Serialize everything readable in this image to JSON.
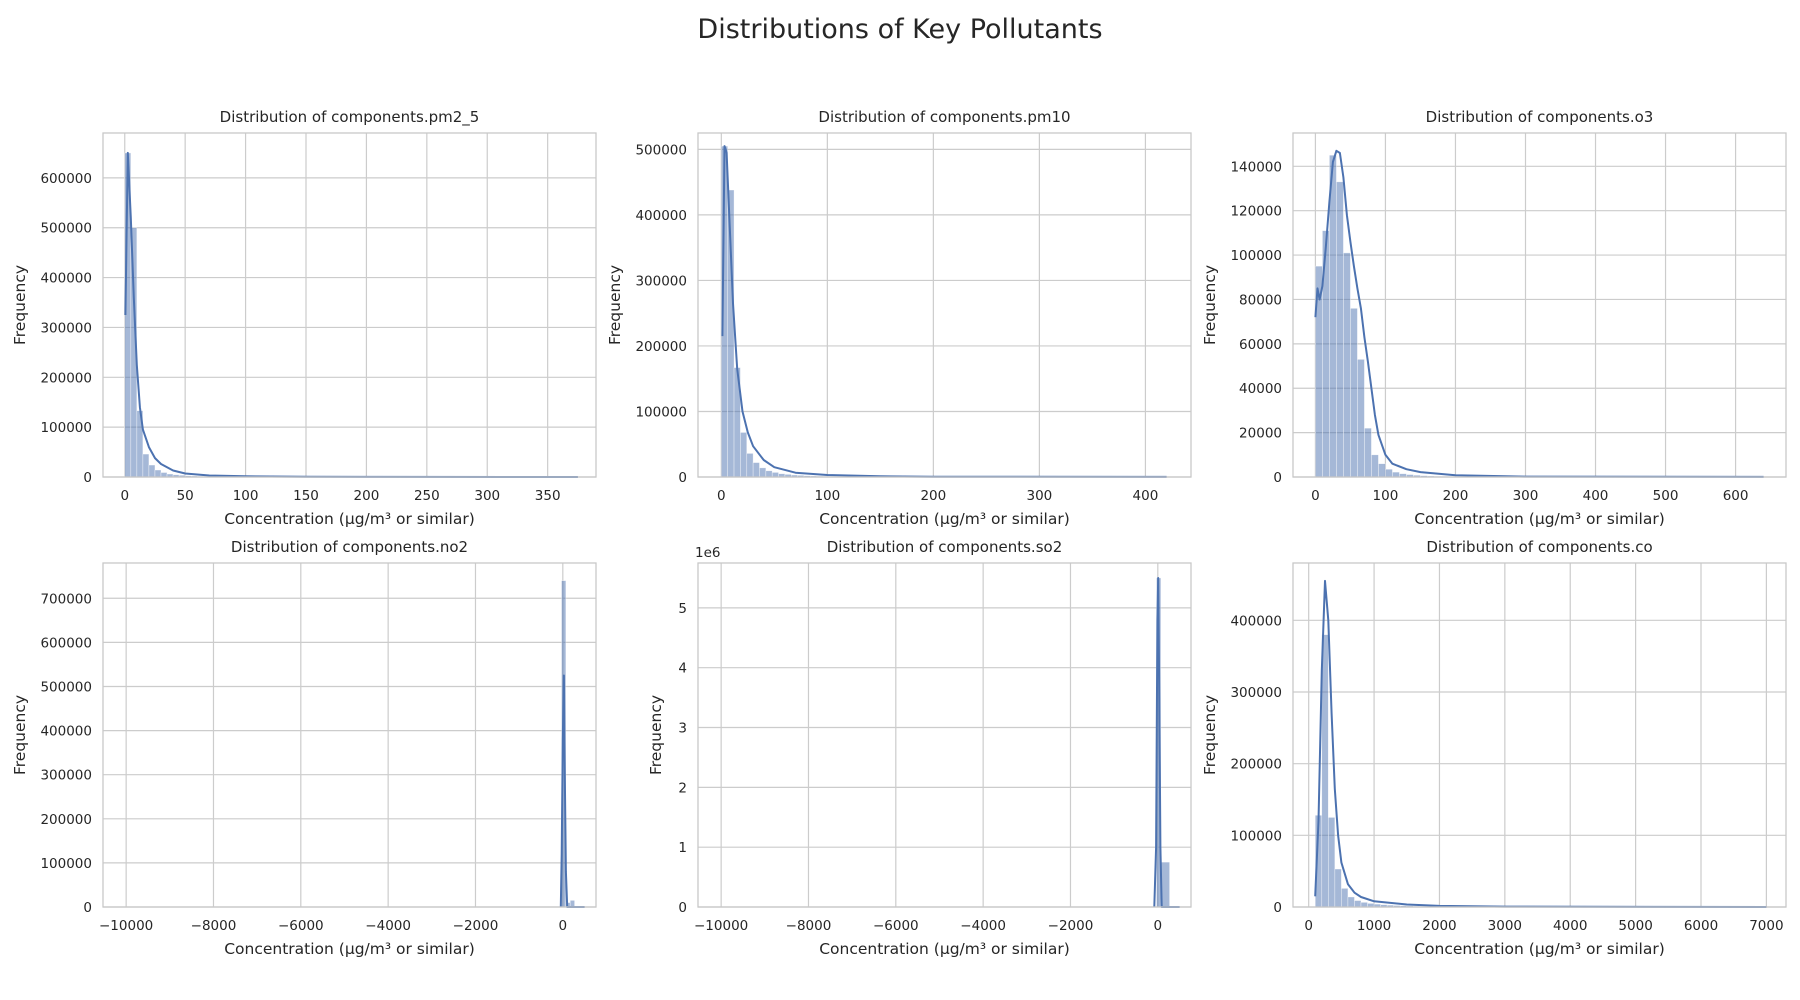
{
  "figure": {
    "title": "Distributions of Key Pollutants",
    "xlabel": "Concentration (µg/m³ or similar)",
    "ylabel": "Frequency"
  },
  "chart_data": [
    {
      "type": "bar",
      "title": "Distribution of components.pm2_5",
      "xlabel": "Concentration (µg/m³ or similar)",
      "ylabel": "Frequency",
      "xlim": [
        -18,
        390
      ],
      "ylim": [
        0,
        690000
      ],
      "xticks": [
        0,
        50,
        100,
        150,
        200,
        250,
        300,
        350
      ],
      "yticks": [
        0,
        100000,
        200000,
        300000,
        400000,
        500000,
        600000
      ],
      "bin_start": 0,
      "bin_width": 5,
      "values": [
        650000,
        500000,
        133000,
        46000,
        24000,
        14000,
        9000,
        6000,
        4500,
        3500,
        2500,
        2000,
        1500,
        1200,
        1000,
        800,
        700,
        600,
        500,
        400,
        350,
        300,
        250,
        200,
        180,
        150,
        130,
        110,
        100,
        90,
        80,
        70,
        60,
        50,
        50,
        40,
        40,
        30,
        30,
        30,
        20,
        20,
        20,
        20,
        20,
        10,
        10,
        10,
        10,
        10,
        10,
        10,
        10,
        10,
        10,
        10,
        10,
        10,
        10,
        10,
        10,
        10,
        10,
        10,
        10,
        10,
        10,
        10,
        10,
        10,
        10,
        10,
        10,
        10,
        10
      ],
      "kde": [
        [
          0.5,
          325000
        ],
        [
          2.5,
          650000
        ],
        [
          5,
          520000
        ],
        [
          7.5,
          360000
        ],
        [
          10,
          225000
        ],
        [
          12.5,
          140000
        ],
        [
          15,
          95000
        ],
        [
          20,
          60000
        ],
        [
          25,
          38000
        ],
        [
          30,
          26000
        ],
        [
          40,
          13000
        ],
        [
          50,
          7000
        ],
        [
          70,
          3000
        ],
        [
          100,
          1500
        ],
        [
          150,
          600
        ],
        [
          200,
          300
        ],
        [
          375,
          100
        ]
      ]
    },
    {
      "type": "bar",
      "title": "Distribution of components.pm10",
      "xlabel": "Concentration (µg/m³ or similar)",
      "ylabel": "Frequency",
      "xlim": [
        -22,
        443
      ],
      "ylim": [
        0,
        525000
      ],
      "xticks": [
        0,
        100,
        200,
        300,
        400
      ],
      "yticks": [
        0,
        100000,
        200000,
        300000,
        400000,
        500000
      ],
      "bin_start": 0,
      "bin_width": 6,
      "values": [
        505000,
        438000,
        167000,
        68000,
        36000,
        22000,
        14000,
        9500,
        7000,
        5000,
        4000,
        3000,
        2500,
        2000,
        1600,
        1300,
        1100,
        900,
        800,
        700,
        600,
        500,
        450,
        400,
        350,
        300,
        250,
        200,
        180,
        150,
        130,
        110,
        100,
        90,
        80,
        70,
        60,
        50,
        50,
        40,
        40,
        30,
        30,
        30,
        20,
        20,
        20,
        20,
        20,
        10,
        10,
        10,
        10,
        10,
        10,
        10,
        10,
        10,
        10,
        10,
        10,
        10,
        10,
        10,
        10,
        10,
        10,
        10,
        10,
        10
      ],
      "kde": [
        [
          1,
          215000
        ],
        [
          3,
          505000
        ],
        [
          5,
          495000
        ],
        [
          8,
          380000
        ],
        [
          11,
          265000
        ],
        [
          15,
          165000
        ],
        [
          20,
          100000
        ],
        [
          25,
          68000
        ],
        [
          30,
          47000
        ],
        [
          40,
          26000
        ],
        [
          50,
          15000
        ],
        [
          70,
          6500
        ],
        [
          100,
          3000
        ],
        [
          150,
          1000
        ],
        [
          200,
          500
        ],
        [
          420,
          100
        ]
      ]
    },
    {
      "type": "bar",
      "title": "Distribution of components.o3",
      "xlabel": "Concentration (µg/m³ or similar)",
      "ylabel": "Frequency",
      "xlim": [
        -32,
        672
      ],
      "ylim": [
        0,
        155000
      ],
      "xticks": [
        0,
        100,
        200,
        300,
        400,
        500,
        600
      ],
      "yticks": [
        0,
        20000,
        40000,
        60000,
        80000,
        100000,
        120000,
        140000
      ],
      "bin_start": 0,
      "bin_width": 10,
      "values": [
        95000,
        111000,
        145000,
        133000,
        101000,
        76000,
        53000,
        22000,
        10000,
        6000,
        3500,
        2200,
        1500,
        1100,
        800,
        600,
        450,
        350,
        280,
        220,
        170,
        130,
        100,
        80,
        60,
        50,
        40,
        30,
        30,
        20,
        20,
        20,
        10,
        10,
        10,
        10,
        10,
        10,
        10,
        10,
        10,
        10,
        10,
        10,
        10,
        10,
        10,
        10,
        10,
        10,
        10,
        10,
        10,
        10,
        10,
        10,
        10,
        10,
        10,
        10,
        10,
        10,
        10,
        10
      ],
      "kde": [
        [
          0,
          72000
        ],
        [
          3,
          85000
        ],
        [
          6,
          80000
        ],
        [
          10,
          86000
        ],
        [
          15,
          104000
        ],
        [
          20,
          124000
        ],
        [
          25,
          142000
        ],
        [
          30,
          147000
        ],
        [
          35,
          146000
        ],
        [
          40,
          135000
        ],
        [
          45,
          118000
        ],
        [
          50,
          106000
        ],
        [
          55,
          95000
        ],
        [
          60,
          85000
        ],
        [
          65,
          76000
        ],
        [
          70,
          63000
        ],
        [
          75,
          52000
        ],
        [
          80,
          40000
        ],
        [
          85,
          28000
        ],
        [
          90,
          19000
        ],
        [
          100,
          10000
        ],
        [
          110,
          6000
        ],
        [
          130,
          3500
        ],
        [
          150,
          2200
        ],
        [
          200,
          800
        ],
        [
          300,
          200
        ],
        [
          640,
          50
        ]
      ]
    },
    {
      "type": "bar",
      "title": "Distribution of components.no2",
      "xlabel": "Concentration (µg/m³ or similar)",
      "ylabel": "Frequency",
      "xlim": [
        -10530,
        760
      ],
      "ylim": [
        0,
        780000
      ],
      "xticks": [
        -10000,
        -8000,
        -6000,
        -4000,
        -2000,
        0
      ],
      "yticks": [
        0,
        100000,
        200000,
        300000,
        400000,
        500000,
        600000,
        700000
      ],
      "bars": [
        {
          "x0": -30,
          "x1": 70,
          "value": 740000
        },
        {
          "x0": 70,
          "x1": 170,
          "value": 10000
        },
        {
          "x0": 170,
          "x1": 270,
          "value": 15000
        }
      ],
      "kde": [
        [
          -45,
          0
        ],
        [
          -25,
          120000
        ],
        [
          0,
          380000
        ],
        [
          25,
          525000
        ],
        [
          45,
          300000
        ],
        [
          70,
          80000
        ],
        [
          100,
          0
        ],
        [
          500,
          0
        ]
      ]
    },
    {
      "type": "bar",
      "title": "Distribution of components.so2",
      "xlabel": "Concentration (µg/m³ or similar)",
      "ylabel": "Frequency",
      "y_offset_label": "1e6",
      "xlim": [
        -10530,
        760
      ],
      "ylim": [
        0,
        5750000
      ],
      "xticks": [
        -10000,
        -8000,
        -6000,
        -4000,
        -2000,
        0
      ],
      "yticks": [
        0,
        1000000,
        2000000,
        3000000,
        4000000,
        5000000
      ],
      "ytick_labels": [
        "0",
        "1",
        "2",
        "3",
        "4",
        "5"
      ],
      "bars": [
        {
          "x0": -30,
          "x1": 70,
          "value": 5500000
        },
        {
          "x0": 70,
          "x1": 270,
          "value": 750000
        }
      ],
      "kde": [
        [
          -80,
          0
        ],
        [
          -40,
          1000000
        ],
        [
          -10,
          4800000
        ],
        [
          10,
          5500000
        ],
        [
          35,
          3500000
        ],
        [
          60,
          1000000
        ],
        [
          90,
          0
        ],
        [
          500,
          0
        ]
      ]
    },
    {
      "type": "bar",
      "title": "Distribution of components.co",
      "xlabel": "Concentration (µg/m³ or similar)",
      "ylabel": "Frequency",
      "xlim": [
        -240,
        7300
      ],
      "ylim": [
        0,
        480000
      ],
      "xticks": [
        0,
        1000,
        2000,
        3000,
        4000,
        5000,
        6000,
        7000
      ],
      "yticks": [
        0,
        100000,
        200000,
        300000,
        400000
      ],
      "bin_start": 100,
      "bin_width": 100,
      "values": [
        128000,
        380000,
        125000,
        53000,
        26000,
        14000,
        9000,
        6500,
        5000,
        4000,
        3200,
        2600,
        2100,
        1800,
        1500,
        1200,
        1000,
        850,
        700,
        600,
        500,
        420,
        350,
        300,
        250,
        210,
        180,
        150,
        130,
        110,
        100,
        90,
        80,
        70,
        60,
        50,
        45,
        40,
        35,
        30,
        25,
        20,
        20,
        20,
        15,
        15,
        15,
        10,
        10,
        10,
        10,
        10,
        10,
        10,
        10,
        10,
        10,
        10,
        10,
        10,
        10,
        10,
        10,
        10,
        10,
        10,
        10,
        10,
        10
      ],
      "kde": [
        [
          100,
          15000
        ],
        [
          150,
          120000
        ],
        [
          200,
          330000
        ],
        [
          250,
          455000
        ],
        [
          300,
          400000
        ],
        [
          350,
          270000
        ],
        [
          400,
          165000
        ],
        [
          450,
          100000
        ],
        [
          500,
          62000
        ],
        [
          600,
          32000
        ],
        [
          700,
          20000
        ],
        [
          800,
          14000
        ],
        [
          1000,
          8000
        ],
        [
          1500,
          3500
        ],
        [
          2000,
          1600
        ],
        [
          3000,
          500
        ],
        [
          7000,
          50
        ]
      ]
    }
  ]
}
